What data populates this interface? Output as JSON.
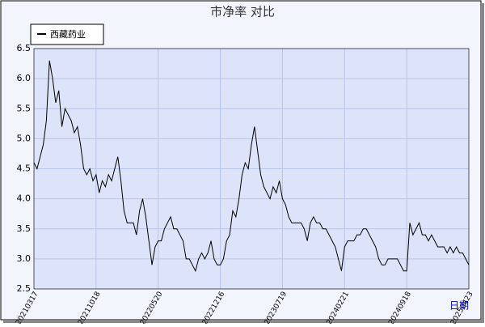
{
  "chart_data": {
    "type": "line",
    "title": "市净率  对比",
    "x_label": "日期",
    "categories": [
      "20210317",
      null,
      null,
      null,
      null,
      null,
      null,
      null,
      null,
      null,
      null,
      null,
      null,
      null,
      null,
      null,
      null,
      null,
      null,
      null,
      "20211018",
      null,
      null,
      null,
      null,
      null,
      null,
      null,
      null,
      null,
      null,
      null,
      null,
      null,
      null,
      null,
      null,
      null,
      null,
      null,
      "20220520",
      null,
      null,
      null,
      null,
      null,
      null,
      null,
      null,
      null,
      null,
      null,
      null,
      null,
      null,
      null,
      null,
      null,
      null,
      null,
      "20221216",
      null,
      null,
      null,
      null,
      null,
      null,
      null,
      null,
      null,
      null,
      null,
      null,
      null,
      null,
      null,
      null,
      null,
      null,
      null,
      "20230719",
      null,
      null,
      null,
      null,
      null,
      null,
      null,
      null,
      null,
      null,
      null,
      null,
      null,
      null,
      null,
      null,
      null,
      null,
      null,
      "20240221",
      null,
      null,
      null,
      null,
      null,
      null,
      null,
      null,
      null,
      null,
      null,
      null,
      null,
      null,
      null,
      null,
      null,
      null,
      null,
      "20240918",
      null,
      null,
      null,
      null,
      null,
      null,
      null,
      null,
      null,
      null,
      null,
      null,
      null,
      null,
      null,
      null,
      null,
      null,
      null,
      "20250423"
    ],
    "series": [
      {
        "name": "西藏药业",
        "color": "#000000",
        "values": [
          4.6,
          4.5,
          4.7,
          4.9,
          5.3,
          6.3,
          6.0,
          5.6,
          5.8,
          5.2,
          5.5,
          5.4,
          5.3,
          5.1,
          5.2,
          4.9,
          4.5,
          4.4,
          4.5,
          4.3,
          4.4,
          4.1,
          4.3,
          4.2,
          4.4,
          4.3,
          4.5,
          4.7,
          4.3,
          3.8,
          3.6,
          3.6,
          3.6,
          3.4,
          3.8,
          4.0,
          3.7,
          3.3,
          2.9,
          3.2,
          3.3,
          3.3,
          3.5,
          3.6,
          3.7,
          3.5,
          3.5,
          3.4,
          3.3,
          3.0,
          3.0,
          2.9,
          2.8,
          3.0,
          3.1,
          3.0,
          3.1,
          3.3,
          3.0,
          2.9,
          2.9,
          3.0,
          3.3,
          3.4,
          3.8,
          3.7,
          4.0,
          4.4,
          4.6,
          4.5,
          4.9,
          5.2,
          4.8,
          4.4,
          4.2,
          4.1,
          4.0,
          4.2,
          4.1,
          4.3,
          4.0,
          3.9,
          3.7,
          3.6,
          3.6,
          3.6,
          3.6,
          3.5,
          3.3,
          3.6,
          3.7,
          3.6,
          3.6,
          3.5,
          3.5,
          3.4,
          3.3,
          3.2,
          3.0,
          2.8,
          3.2,
          3.3,
          3.3,
          3.3,
          3.4,
          3.4,
          3.5,
          3.5,
          3.4,
          3.3,
          3.2,
          3.0,
          2.9,
          2.9,
          3.0,
          3.0,
          3.0,
          3.0,
          2.9,
          2.8,
          2.8,
          3.6,
          3.4,
          3.5,
          3.6,
          3.4,
          3.4,
          3.3,
          3.4,
          3.3,
          3.2,
          3.2,
          3.2,
          3.1,
          3.2,
          3.1,
          3.2,
          3.1,
          3.1,
          3.0,
          2.9
        ]
      }
    ],
    "ylim": [
      2.5,
      6.5
    ],
    "yticks": [
      2.5,
      {
        "value": 3,
        "label": "3.0"
      },
      3.5,
      {
        "value": 4,
        "label": "4.0"
      },
      4.5,
      {
        "value": 5,
        "label": "5.0"
      },
      5.5,
      {
        "value": 6,
        "label": "6.0"
      },
      6.5
    ],
    "grid": true
  }
}
